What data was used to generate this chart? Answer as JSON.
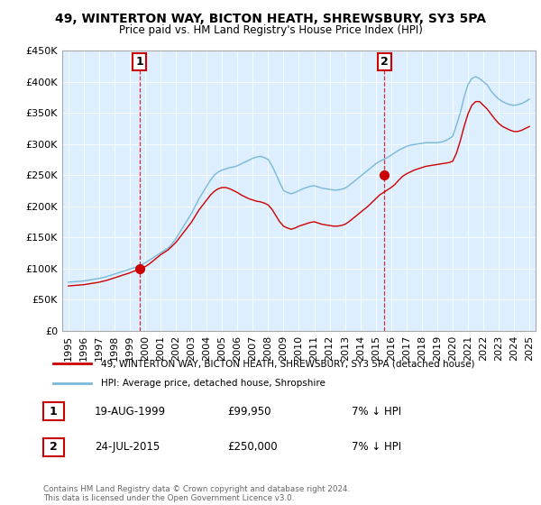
{
  "title": "49, WINTERTON WAY, BICTON HEATH, SHREWSBURY, SY3 5PA",
  "subtitle": "Price paid vs. HM Land Registry's House Price Index (HPI)",
  "legend_line1": "49, WINTERTON WAY, BICTON HEATH, SHREWSBURY, SY3 5PA (detached house)",
  "legend_line2": "HPI: Average price, detached house, Shropshire",
  "annotation1_label": "1",
  "annotation1_date": "19-AUG-1999",
  "annotation1_price": "£99,950",
  "annotation1_hpi": "7% ↓ HPI",
  "annotation2_label": "2",
  "annotation2_date": "24-JUL-2015",
  "annotation2_price": "£250,000",
  "annotation2_hpi": "7% ↓ HPI",
  "footer": "Contains HM Land Registry data © Crown copyright and database right 2024.\nThis data is licensed under the Open Government Licence v3.0.",
  "sale1_year": 1999.63,
  "sale1_value": 99950,
  "sale2_year": 2015.56,
  "sale2_value": 250000,
  "hpi_color": "#7ab8d9",
  "price_color": "#cc0000",
  "plot_bg_color": "#ddeeff",
  "ylim": [
    0,
    450000
  ],
  "xlim_start": 1994.6,
  "xlim_end": 2025.4,
  "hpi_years": [
    1995.0,
    1995.25,
    1995.5,
    1995.75,
    1996.0,
    1996.25,
    1996.5,
    1996.75,
    1997.0,
    1997.25,
    1997.5,
    1997.75,
    1998.0,
    1998.25,
    1998.5,
    1998.75,
    1999.0,
    1999.25,
    1999.5,
    1999.75,
    2000.0,
    2000.25,
    2000.5,
    2000.75,
    2001.0,
    2001.25,
    2001.5,
    2001.75,
    2002.0,
    2002.25,
    2002.5,
    2002.75,
    2003.0,
    2003.25,
    2003.5,
    2003.75,
    2004.0,
    2004.25,
    2004.5,
    2004.75,
    2005.0,
    2005.25,
    2005.5,
    2005.75,
    2006.0,
    2006.25,
    2006.5,
    2006.75,
    2007.0,
    2007.25,
    2007.5,
    2007.75,
    2008.0,
    2008.25,
    2008.5,
    2008.75,
    2009.0,
    2009.25,
    2009.5,
    2009.75,
    2010.0,
    2010.25,
    2010.5,
    2010.75,
    2011.0,
    2011.25,
    2011.5,
    2011.75,
    2012.0,
    2012.25,
    2012.5,
    2012.75,
    2013.0,
    2013.25,
    2013.5,
    2013.75,
    2014.0,
    2014.25,
    2014.5,
    2014.75,
    2015.0,
    2015.25,
    2015.5,
    2015.75,
    2016.0,
    2016.25,
    2016.5,
    2016.75,
    2017.0,
    2017.25,
    2017.5,
    2017.75,
    2018.0,
    2018.25,
    2018.5,
    2018.75,
    2019.0,
    2019.25,
    2019.5,
    2019.75,
    2020.0,
    2020.25,
    2020.5,
    2020.75,
    2021.0,
    2021.25,
    2021.5,
    2021.75,
    2022.0,
    2022.25,
    2022.5,
    2022.75,
    2023.0,
    2023.25,
    2023.5,
    2023.75,
    2024.0,
    2024.25,
    2024.5,
    2024.75,
    2025.0
  ],
  "hpi_values": [
    78000,
    78500,
    79000,
    79500,
    80000,
    81000,
    82000,
    83000,
    84000,
    85500,
    87000,
    89000,
    91000,
    93000,
    95000,
    97000,
    99000,
    101000,
    103000,
    106000,
    109000,
    113000,
    117000,
    121000,
    125000,
    129000,
    133000,
    140000,
    148000,
    158000,
    168000,
    178000,
    188000,
    200000,
    212000,
    222000,
    232000,
    242000,
    250000,
    255000,
    258000,
    260000,
    262000,
    263000,
    265000,
    268000,
    271000,
    274000,
    277000,
    279000,
    280000,
    278000,
    275000,
    265000,
    252000,
    238000,
    225000,
    222000,
    220000,
    222000,
    225000,
    228000,
    230000,
    232000,
    233000,
    231000,
    229000,
    228000,
    227000,
    226000,
    226000,
    227000,
    229000,
    233000,
    238000,
    243000,
    248000,
    253000,
    258000,
    263000,
    268000,
    272000,
    275000,
    278000,
    282000,
    286000,
    290000,
    293000,
    296000,
    298000,
    299000,
    300000,
    301000,
    302000,
    302000,
    302000,
    302000,
    303000,
    305000,
    308000,
    312000,
    330000,
    350000,
    375000,
    395000,
    405000,
    408000,
    405000,
    400000,
    395000,
    385000,
    378000,
    372000,
    368000,
    365000,
    363000,
    362000,
    363000,
    365000,
    368000,
    372000
  ],
  "red_values": [
    72000,
    72500,
    73000,
    73500,
    74000,
    75000,
    76000,
    77000,
    78000,
    79500,
    81000,
    83000,
    85000,
    87000,
    89000,
    91000,
    93000,
    95500,
    97500,
    100000,
    103000,
    107000,
    112000,
    117000,
    122000,
    126000,
    130000,
    136000,
    142000,
    150000,
    158000,
    166000,
    174000,
    184000,
    194000,
    202000,
    210000,
    218000,
    224000,
    228000,
    230000,
    230000,
    228000,
    225000,
    222000,
    218000,
    215000,
    212000,
    210000,
    208000,
    207000,
    205000,
    202000,
    195000,
    185000,
    175000,
    168000,
    165000,
    163000,
    165000,
    168000,
    170000,
    172000,
    174000,
    175000,
    173000,
    171000,
    170000,
    169000,
    168000,
    168000,
    169000,
    171000,
    175000,
    180000,
    185000,
    190000,
    195000,
    200000,
    206000,
    212000,
    218000,
    222000,
    226000,
    230000,
    235000,
    242000,
    248000,
    252000,
    255000,
    258000,
    260000,
    262000,
    264000,
    265000,
    266000,
    267000,
    268000,
    269000,
    270000,
    272000,
    285000,
    305000,
    328000,
    348000,
    362000,
    368000,
    368000,
    362000,
    356000,
    348000,
    340000,
    333000,
    328000,
    325000,
    322000,
    320000,
    320000,
    322000,
    325000,
    328000
  ]
}
